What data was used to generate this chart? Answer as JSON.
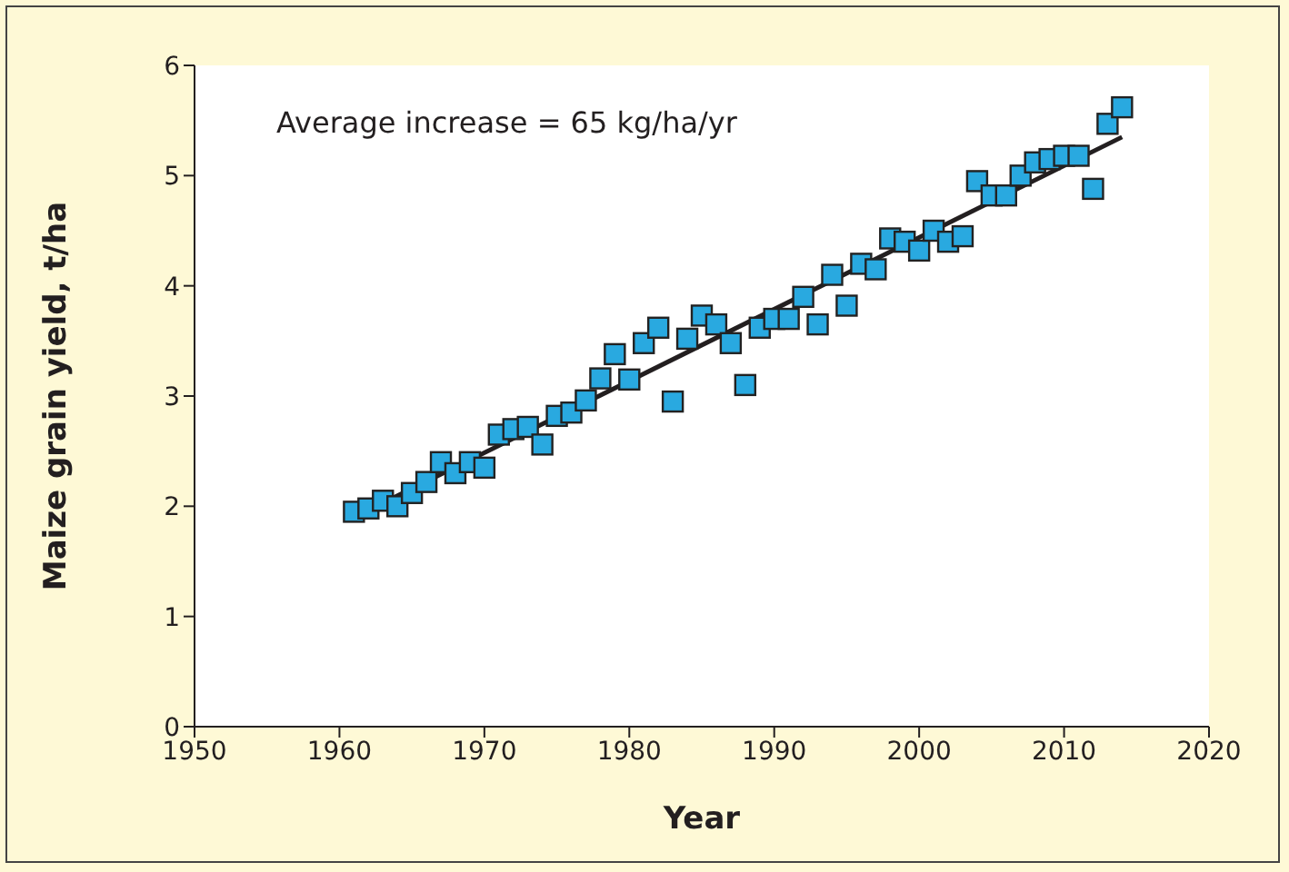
{
  "chart_data": {
    "type": "scatter",
    "xlabel": "Year",
    "ylabel": "Maize grain yield, t/ha",
    "annotations": [
      "Average increase = 65 kg/ha/yr"
    ],
    "x": [
      1961,
      1962,
      1963,
      1964,
      1965,
      1966,
      1967,
      1968,
      1969,
      1970,
      1971,
      1972,
      1973,
      1974,
      1975,
      1976,
      1977,
      1978,
      1979,
      1980,
      1981,
      1982,
      1983,
      1984,
      1985,
      1986,
      1987,
      1988,
      1989,
      1990,
      1991,
      1992,
      1993,
      1994,
      1995,
      1996,
      1997,
      1998,
      1999,
      2000,
      2001,
      2002,
      2003,
      2004,
      2005,
      2006,
      2007,
      2008,
      2009,
      2010,
      2011,
      2012,
      2013,
      2014
    ],
    "series": [
      {
        "color": "#29a9e0",
        "marker": "square",
        "values": [
          1.95,
          1.98,
          2.05,
          2.0,
          2.12,
          2.22,
          2.4,
          2.3,
          2.4,
          2.35,
          2.65,
          2.7,
          2.72,
          2.56,
          2.82,
          2.85,
          2.96,
          3.16,
          3.38,
          3.15,
          3.48,
          3.62,
          2.95,
          3.52,
          3.73,
          3.65,
          3.48,
          3.1,
          3.62,
          3.7,
          3.7,
          3.9,
          3.65,
          4.1,
          3.82,
          4.2,
          4.15,
          4.43,
          4.4,
          4.32,
          4.5,
          4.4,
          4.45,
          4.95,
          4.82,
          4.82,
          5.0,
          5.12,
          5.15,
          5.18,
          5.18,
          4.88,
          5.47,
          5.62
        ]
      },
      {
        "type": "line",
        "color": "#231f20",
        "marker": "none",
        "line_style": "solid",
        "x": [
          1961,
          2014
        ],
        "values": [
          1.9,
          5.35
        ]
      }
    ],
    "xlim": [
      1950,
      2020
    ],
    "xticks": [
      1950,
      1960,
      1970,
      1980,
      1990,
      2000,
      2010,
      2020
    ],
    "ylim": [
      0,
      6
    ],
    "yticks": [
      0,
      1,
      2,
      3,
      4,
      5,
      6
    ],
    "grid": false,
    "legend": false
  }
}
